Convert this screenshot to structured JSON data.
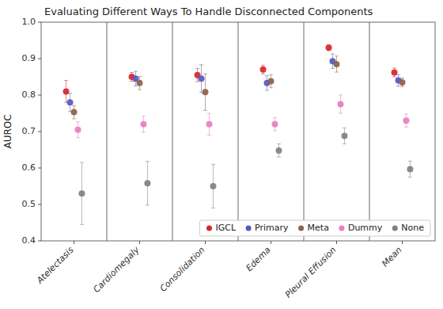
{
  "chart_data": {
    "type": "errorbar",
    "title": "Evaluating Different Ways To Handle Disconnected Components",
    "y_label": "AUROC",
    "categories": [
      "Atelectasis",
      "Cardiomegaly",
      "Consolidation",
      "Edema",
      "Pleural Effusion",
      "Mean"
    ],
    "series": [
      {
        "name": "IGCL",
        "color": "#d62728",
        "values": [
          0.81,
          0.85,
          0.855,
          0.87,
          0.93,
          0.862
        ],
        "errors_low": [
          0.03,
          0.012,
          0.018,
          0.012,
          0.008,
          0.012
        ],
        "errors_high": [
          0.03,
          0.012,
          0.018,
          0.012,
          0.008,
          0.012
        ]
      },
      {
        "name": "Primary",
        "color": "#5757c2",
        "values": [
          0.78,
          0.845,
          0.845,
          0.833,
          0.893,
          0.84
        ],
        "errors_low": [
          0.025,
          0.02,
          0.038,
          0.02,
          0.02,
          0.016
        ],
        "errors_high": [
          0.025,
          0.02,
          0.038,
          0.02,
          0.02,
          0.016
        ]
      },
      {
        "name": "Meta",
        "color": "#8B6347",
        "values": [
          0.753,
          0.833,
          0.808,
          0.838,
          0.885,
          0.835
        ],
        "errors_low": [
          0.018,
          0.018,
          0.05,
          0.018,
          0.022,
          0.012
        ],
        "errors_high": [
          0.018,
          0.018,
          0.05,
          0.018,
          0.022,
          0.012
        ]
      },
      {
        "name": "Dummy",
        "color": "#e87ec0",
        "values": [
          0.705,
          0.72,
          0.72,
          0.72,
          0.775,
          0.73
        ],
        "errors_low": [
          0.022,
          0.022,
          0.03,
          0.018,
          0.025,
          0.018
        ],
        "errors_high": [
          0.022,
          0.022,
          0.03,
          0.018,
          0.025,
          0.018
        ]
      },
      {
        "name": "None",
        "color": "#808080",
        "values": [
          0.53,
          0.558,
          0.55,
          0.648,
          0.688,
          0.597
        ],
        "errors_low": [
          0.085,
          0.06,
          0.06,
          0.018,
          0.022,
          0.022
        ],
        "errors_high": [
          0.085,
          0.06,
          0.06,
          0.018,
          0.022,
          0.022
        ]
      }
    ],
    "ylim": [
      0.4,
      1.0
    ],
    "yticks": [
      0.4,
      0.5,
      0.6,
      0.7,
      0.8,
      0.9,
      {
        "value": 1.0,
        "label": "1.0"
      }
    ],
    "grid": false,
    "legend": "lower right",
    "marker": "circle"
  }
}
